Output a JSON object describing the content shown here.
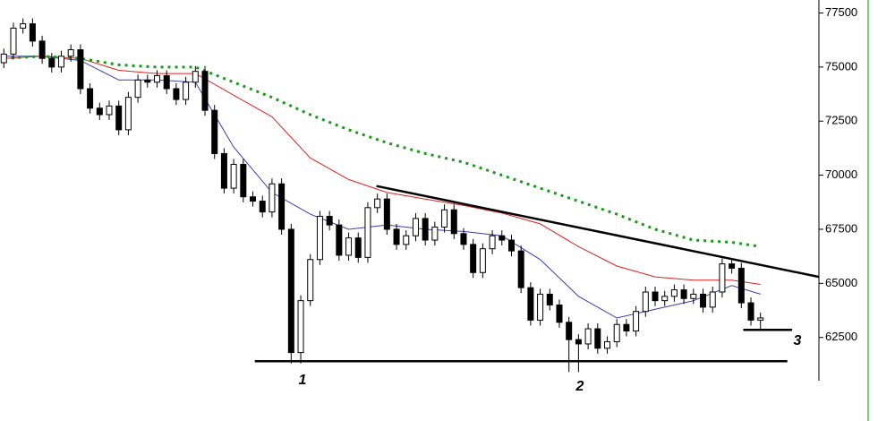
{
  "chart_data": {
    "type": "candlestick",
    "xlim": [
      -0.4,
      85.1
    ],
    "ylim": [
      60500,
      78100
    ],
    "yticks": [
      62500,
      65000,
      67500,
      70000,
      72500,
      75000,
      77500
    ],
    "up_color": "#ffffff",
    "down_color": "#000000",
    "open": [
      75200,
      75600,
      76800,
      77000,
      76200,
      75400,
      75000,
      75500,
      75800,
      74000,
      73100,
      72800,
      73200,
      72100,
      73600,
      74400,
      74300,
      74600,
      74000,
      73500,
      74300,
      74800,
      73000,
      71000,
      69400,
      70500,
      69000,
      68800,
      68300,
      69600,
      67500,
      61800,
      64200,
      66100,
      68100,
      67700,
      66300,
      67100,
      66200,
      68500,
      68900,
      67500,
      66800,
      67200,
      68000,
      67000,
      67600,
      68400,
      67300,
      66800,
      65500,
      66600,
      67200,
      67000,
      66500,
      64800,
      63300,
      64500,
      64000,
      63200,
      62400,
      62200,
      62900,
      62000,
      62300,
      63100,
      62800,
      63700,
      64600,
      64200,
      64400,
      64700,
      64300,
      64500,
      63900,
      64600,
      65900,
      65700,
      64100,
      63300
    ],
    "high": [
      75850,
      77050,
      77250,
      77250,
      76450,
      75650,
      75750,
      76050,
      76050,
      74250,
      73350,
      73450,
      73450,
      73850,
      74650,
      74650,
      74850,
      74850,
      74250,
      74550,
      75050,
      75050,
      73250,
      71250,
      70750,
      70750,
      69250,
      69050,
      69850,
      69850,
      67750,
      64450,
      66350,
      68350,
      68350,
      67950,
      67350,
      67350,
      68750,
      69150,
      69150,
      67750,
      67450,
      68250,
      68250,
      67850,
      68650,
      68650,
      67550,
      67050,
      66850,
      67450,
      67450,
      67250,
      66750,
      65050,
      64750,
      64750,
      64250,
      63450,
      62650,
      63150,
      63150,
      62550,
      63350,
      63350,
      63950,
      64850,
      64850,
      64650,
      64950,
      64950,
      64750,
      64750,
      64850,
      66150,
      66150,
      65950,
      64350,
      63650
    ],
    "low": [
      74950,
      75350,
      76550,
      75950,
      75150,
      74750,
      74750,
      75250,
      73750,
      72850,
      72550,
      72550,
      71850,
      71850,
      73350,
      74050,
      74050,
      73750,
      73250,
      73250,
      74050,
      72750,
      70750,
      69150,
      69150,
      68750,
      68550,
      68050,
      68050,
      67250,
      61300,
      61300,
      63950,
      65850,
      67450,
      66050,
      66050,
      65950,
      65950,
      68250,
      67250,
      66550,
      66550,
      66950,
      66750,
      66750,
      67350,
      67050,
      66550,
      65250,
      65250,
      66350,
      66750,
      66250,
      64550,
      63050,
      63050,
      63750,
      62950,
      60900,
      60900,
      61950,
      61750,
      61750,
      62050,
      62550,
      62550,
      63450,
      63950,
      63950,
      64150,
      64050,
      64050,
      63650,
      63650,
      64350,
      65450,
      63850,
      63050,
      62900
    ],
    "close": [
      75600,
      76800,
      77000,
      76200,
      75400,
      75000,
      75500,
      75800,
      74000,
      73100,
      72800,
      73200,
      72100,
      73600,
      74400,
      74300,
      74600,
      74000,
      73500,
      74300,
      74800,
      73000,
      71000,
      69400,
      70500,
      69000,
      68800,
      68300,
      69600,
      67500,
      61800,
      64200,
      66100,
      68100,
      67700,
      66300,
      67100,
      66200,
      68500,
      68900,
      67500,
      66800,
      67200,
      68000,
      67000,
      67600,
      68400,
      67300,
      66800,
      65500,
      66600,
      67200,
      67000,
      66500,
      64800,
      63300,
      64500,
      64000,
      63200,
      62400,
      62200,
      62900,
      62000,
      62300,
      63100,
      62800,
      63700,
      64600,
      64200,
      64400,
      64700,
      64300,
      64500,
      63900,
      64600,
      65900,
      65700,
      64100,
      63300,
      63400
    ],
    "overlays": [
      {
        "color": "#3a3ab8",
        "style": "solid",
        "x": [
          0,
          4,
          8,
          12,
          16,
          20,
          24,
          28,
          32,
          36,
          40,
          44,
          48,
          52,
          56,
          60,
          64,
          68,
          72,
          76,
          79
        ],
        "values": [
          75500,
          75500,
          75300,
          74400,
          74400,
          74300,
          71300,
          69200,
          68200,
          67500,
          67700,
          67500,
          67400,
          67200,
          66100,
          64400,
          63400,
          63800,
          64200,
          64900,
          64500
        ]
      },
      {
        "color": "#e02020",
        "style": "solid",
        "x": [
          0,
          4,
          8,
          12,
          16,
          20,
          24,
          28,
          32,
          36,
          40,
          44,
          48,
          52,
          56,
          60,
          64,
          68,
          72,
          76,
          79
        ],
        "values": [
          75400,
          75500,
          75400,
          74850,
          74700,
          74700,
          73700,
          72700,
          70800,
          69800,
          69200,
          68900,
          68600,
          68250,
          67750,
          66700,
          65800,
          65300,
          65150,
          65150,
          64950
        ]
      },
      {
        "color": "#1a9a1a",
        "style": "dotted",
        "x": [
          0,
          4,
          8,
          12,
          16,
          20,
          24,
          28,
          32,
          36,
          40,
          44,
          48,
          52,
          56,
          60,
          64,
          68,
          72,
          76,
          79
        ],
        "values": [
          75400,
          75500,
          75400,
          75100,
          75000,
          75000,
          74300,
          73600,
          72800,
          72100,
          71500,
          71000,
          70600,
          70000,
          69400,
          68800,
          68200,
          67500,
          67000,
          66900,
          66700
        ]
      }
    ],
    "trend_lines": [
      {
        "x": [
          38.9,
          85.1
        ],
        "values": [
          69500,
          65300
        ]
      },
      {
        "x": [
          26.2,
          81.8
        ],
        "values": [
          61400,
          61400
        ]
      },
      {
        "x": [
          77.2,
          82.3
        ],
        "values": [
          62850,
          62850
        ]
      }
    ],
    "annotations": [
      "1",
      "2",
      "3"
    ]
  }
}
